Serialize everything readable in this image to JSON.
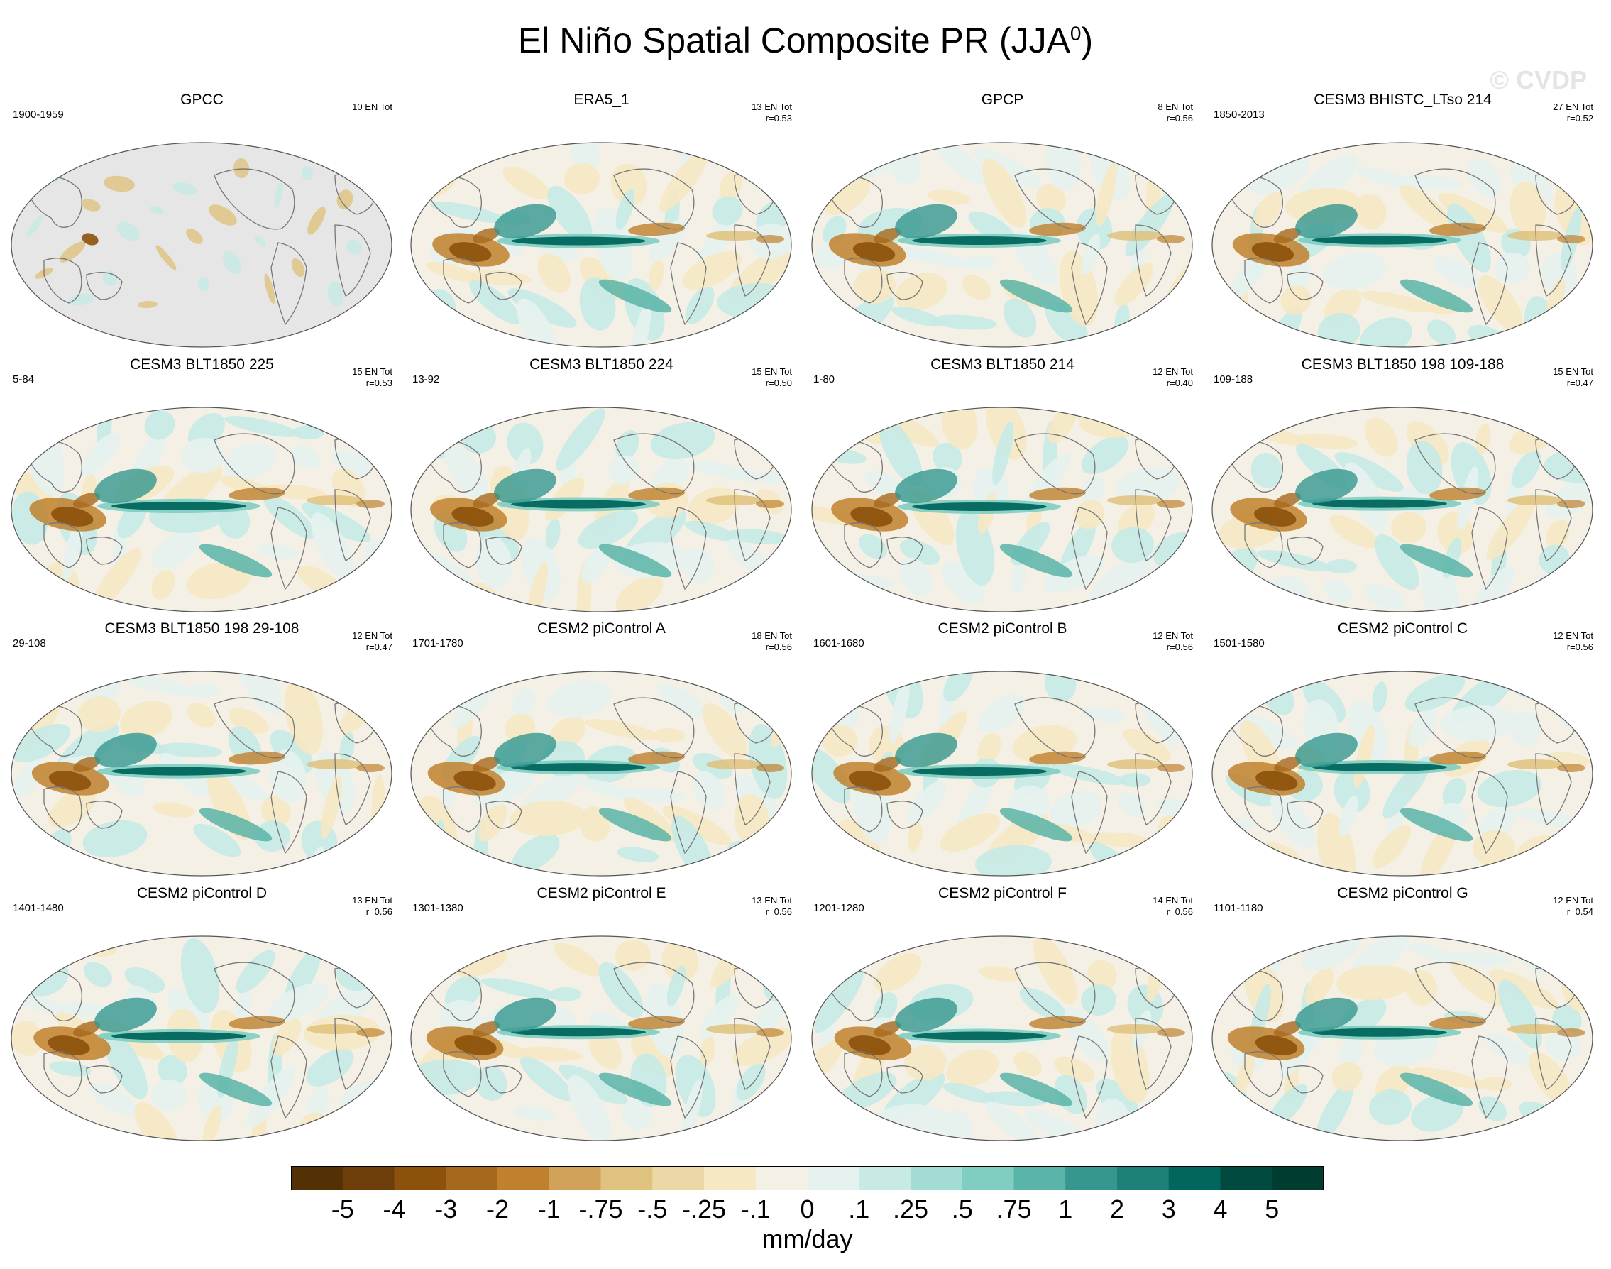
{
  "chart_data": {
    "type": "heatmap",
    "title": "El Niño Spatial Composite PR (JJA",
    "title_superscript": "0",
    "title_close": ")",
    "watermark": "© CVDP",
    "colorbar": {
      "units": "mm/day",
      "labels": [
        "-5",
        "-4",
        "-3",
        "-2",
        "-1",
        "-.75",
        "-.5",
        "-.25",
        "-.1",
        "0",
        ".1",
        ".25",
        ".5",
        ".75",
        "1",
        "2",
        "3",
        "4",
        "5"
      ],
      "colors": [
        "#543005",
        "#6e3e0a",
        "#8c510a",
        "#a6681c",
        "#bf812d",
        "#d1a35a",
        "#dfc27d",
        "#ecd8a6",
        "#f6e8c3",
        "#f5f0e6",
        "#e6f2ef",
        "#c7eae5",
        "#a3dcd3",
        "#80cdc1",
        "#5ab4a7",
        "#35978f",
        "#1d8179",
        "#01665e",
        "#00493f",
        "#003c30"
      ]
    },
    "panels": [
      {
        "title": "GPCC",
        "period": "1900-1959",
        "count": "10 EN Tot",
        "corr": "",
        "masked_ocean": true
      },
      {
        "title": "ERA5_1",
        "period": "",
        "count": "13 EN Tot",
        "corr": "r=0.53"
      },
      {
        "title": "GPCP",
        "period": "",
        "count": "8 EN Tot",
        "corr": "r=0.56"
      },
      {
        "title": "CESM3 BHISTC_LTso 214",
        "period": "1850-2013",
        "count": "27 EN Tot",
        "corr": "r=0.52"
      },
      {
        "title": "CESM3 BLT1850 225",
        "period": "5-84",
        "count": "15 EN Tot",
        "corr": "r=0.53"
      },
      {
        "title": "CESM3 BLT1850 224",
        "period": "13-92",
        "count": "15 EN Tot",
        "corr": "r=0.50"
      },
      {
        "title": "CESM3 BLT1850 214",
        "period": "1-80",
        "count": "12 EN Tot",
        "corr": "r=0.40"
      },
      {
        "title": "CESM3 BLT1850 198 109-188",
        "period": "109-188",
        "count": "15 EN Tot",
        "corr": "r=0.47"
      },
      {
        "title": "CESM3 BLT1850 198 29-108",
        "period": "29-108",
        "count": "12 EN Tot",
        "corr": "r=0.47"
      },
      {
        "title": "CESM2 piControl A",
        "period": "1701-1780",
        "count": "18 EN Tot",
        "corr": "r=0.56"
      },
      {
        "title": "CESM2 piControl B",
        "period": "1601-1680",
        "count": "12 EN Tot",
        "corr": "r=0.56"
      },
      {
        "title": "CESM2 piControl C",
        "period": "1501-1580",
        "count": "12 EN Tot",
        "corr": "r=0.56"
      },
      {
        "title": "CESM2 piControl D",
        "period": "1401-1480",
        "count": "13 EN Tot",
        "corr": "r=0.56"
      },
      {
        "title": "CESM2 piControl E",
        "period": "1301-1380",
        "count": "13 EN Tot",
        "corr": "r=0.56"
      },
      {
        "title": "CESM2 piControl F",
        "period": "1201-1280",
        "count": "14 EN Tot",
        "corr": "r=0.56"
      },
      {
        "title": "CESM2 piControl G",
        "period": "1101-1180",
        "count": "12 EN Tot",
        "corr": "r=0.54"
      }
    ]
  }
}
